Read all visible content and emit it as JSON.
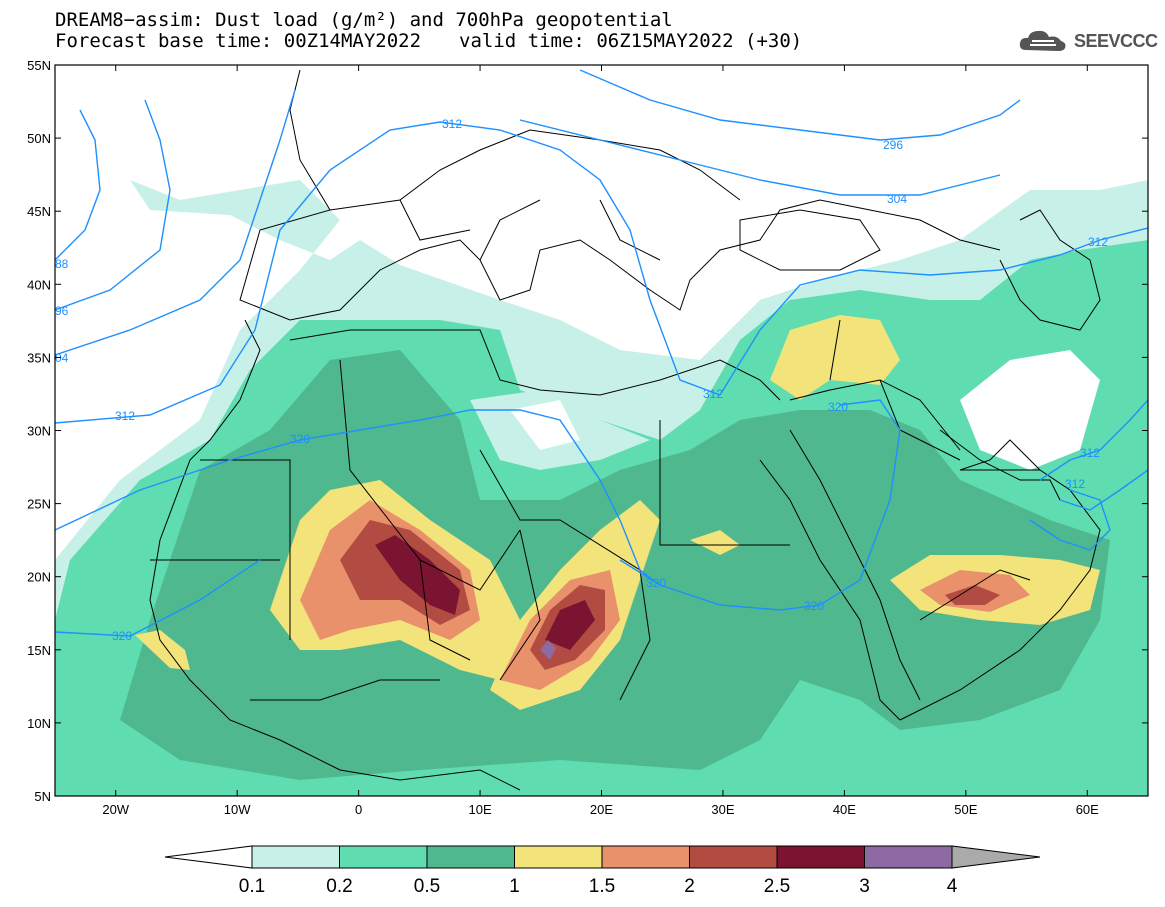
{
  "header": {
    "title_line1": "DREAM8−assim: Dust load (g/m²) and 700hPa geopotential",
    "forecast_base": "Forecast base time: 00Z14MAY2022",
    "valid_time": "valid time: 06Z15MAY2022 (+30)",
    "logo_text": "SEEVCCC"
  },
  "map": {
    "lon_range": [
      -25,
      65
    ],
    "lat_range": [
      5,
      55
    ],
    "lat_labels": [
      "5N",
      "10N",
      "15N",
      "20N",
      "25N",
      "30N",
      "35N",
      "40N",
      "45N",
      "50N",
      "55N"
    ],
    "lon_labels": [
      "20W",
      "10W",
      "0",
      "10E",
      "20E",
      "30E",
      "40E",
      "50E",
      "60E"
    ],
    "contour_color": "#1e90ff",
    "contour_labels": [
      "312",
      "296",
      "304",
      "312",
      "88",
      "96",
      "04",
      "312",
      "320",
      "312",
      "320",
      "312",
      "312",
      "320",
      "320",
      "320"
    ]
  },
  "colorbar": {
    "levels": [
      "0.1",
      "0.2",
      "0.5",
      "1",
      "1.5",
      "2",
      "2.5",
      "3",
      "4"
    ],
    "colors": [
      "#ffffff",
      "#c6f0e8",
      "#5fdcb0",
      "#4fb88e",
      "#f2e37a",
      "#e8916a",
      "#b24c42",
      "#7a1430",
      "#8e6aa2",
      "#aaaaaa"
    ]
  }
}
